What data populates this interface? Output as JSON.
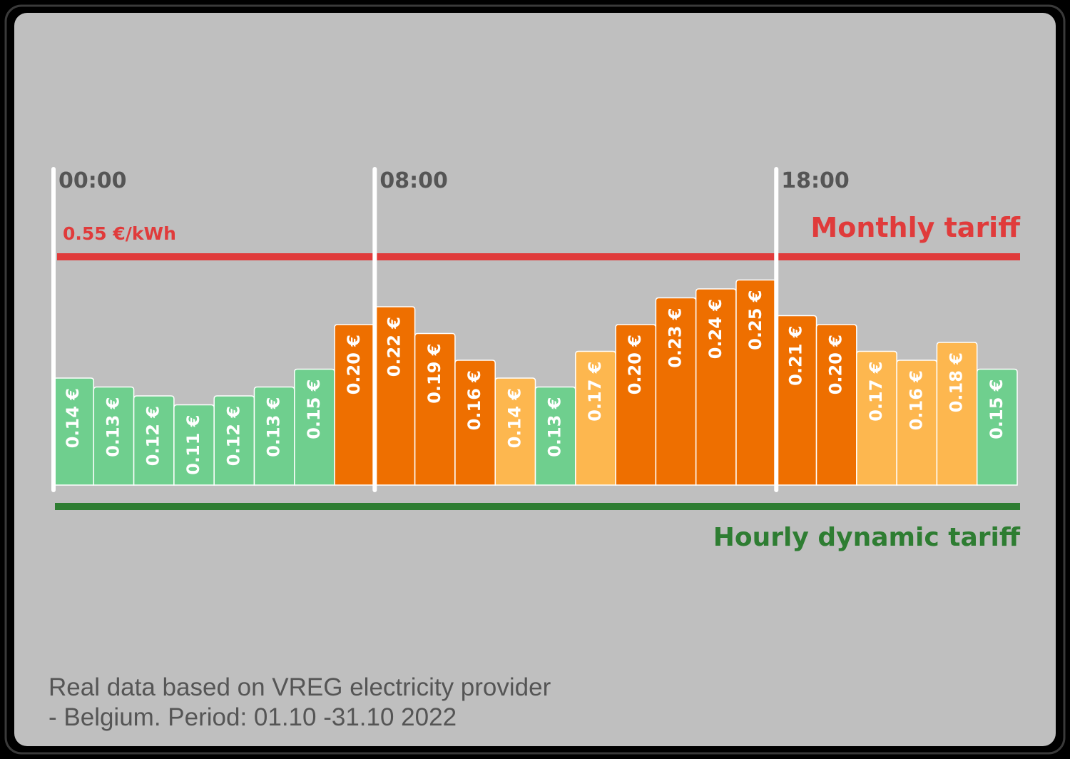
{
  "chart_data": {
    "type": "bar",
    "categories": [
      null,
      null,
      null,
      null,
      null,
      null,
      null,
      null,
      null,
      null,
      null,
      null,
      null,
      null,
      null,
      null,
      null,
      null,
      null,
      null,
      null,
      null,
      null,
      null
    ],
    "values": [
      0.14,
      0.13,
      0.12,
      0.11,
      0.12,
      0.13,
      0.15,
      0.2,
      0.22,
      0.19,
      0.16,
      0.14,
      0.13,
      0.17,
      0.2,
      0.23,
      0.24,
      0.25,
      0.21,
      0.2,
      0.17,
      0.16,
      0.18,
      0.15
    ],
    "value_labels": [
      "0.14 €",
      "0.13 €",
      "0.12 €",
      "0.11 €",
      "0.12 €",
      "0.13 €",
      "0.15 €",
      "0.20 €",
      "0.22 €",
      "0.19 €",
      "0.16 €",
      "0.14 €",
      "0.13 €",
      "0.17 €",
      "0.20 €",
      "0.23 €",
      "0.24 €",
      "0.25 €",
      "0.21 €",
      "0.20 €",
      "0.17 €",
      "0.16 €",
      "0.18 €",
      "0.15 €"
    ],
    "colors": [
      "#6fcf8e",
      "#6fcf8e",
      "#6fcf8e",
      "#6fcf8e",
      "#6fcf8e",
      "#6fcf8e",
      "#6fcf8e",
      "#ee6f00",
      "#ee6f00",
      "#ee6f00",
      "#ee6f00",
      "#fdb74f",
      "#6fcf8e",
      "#fdb74f",
      "#ee6f00",
      "#ee6f00",
      "#ee6f00",
      "#ee6f00",
      "#ee6f00",
      "#ee6f00",
      "#fdb74f",
      "#fdb74f",
      "#fdb74f",
      "#6fcf8e"
    ],
    "ylim": [
      0.02,
      0.26
    ],
    "time_markers": [
      "00:00",
      "08:00",
      "18:00"
    ],
    "monthly_tariff_label": "Monthly tariff",
    "monthly_tariff_value": "0.55 €/kWh",
    "hourly_tariff_label": "Hourly dynamic tariff",
    "footnote": [
      "Real data based on VREG electricity provider",
      "- Belgium. Period: 01.10 -31.10 2022"
    ]
  }
}
